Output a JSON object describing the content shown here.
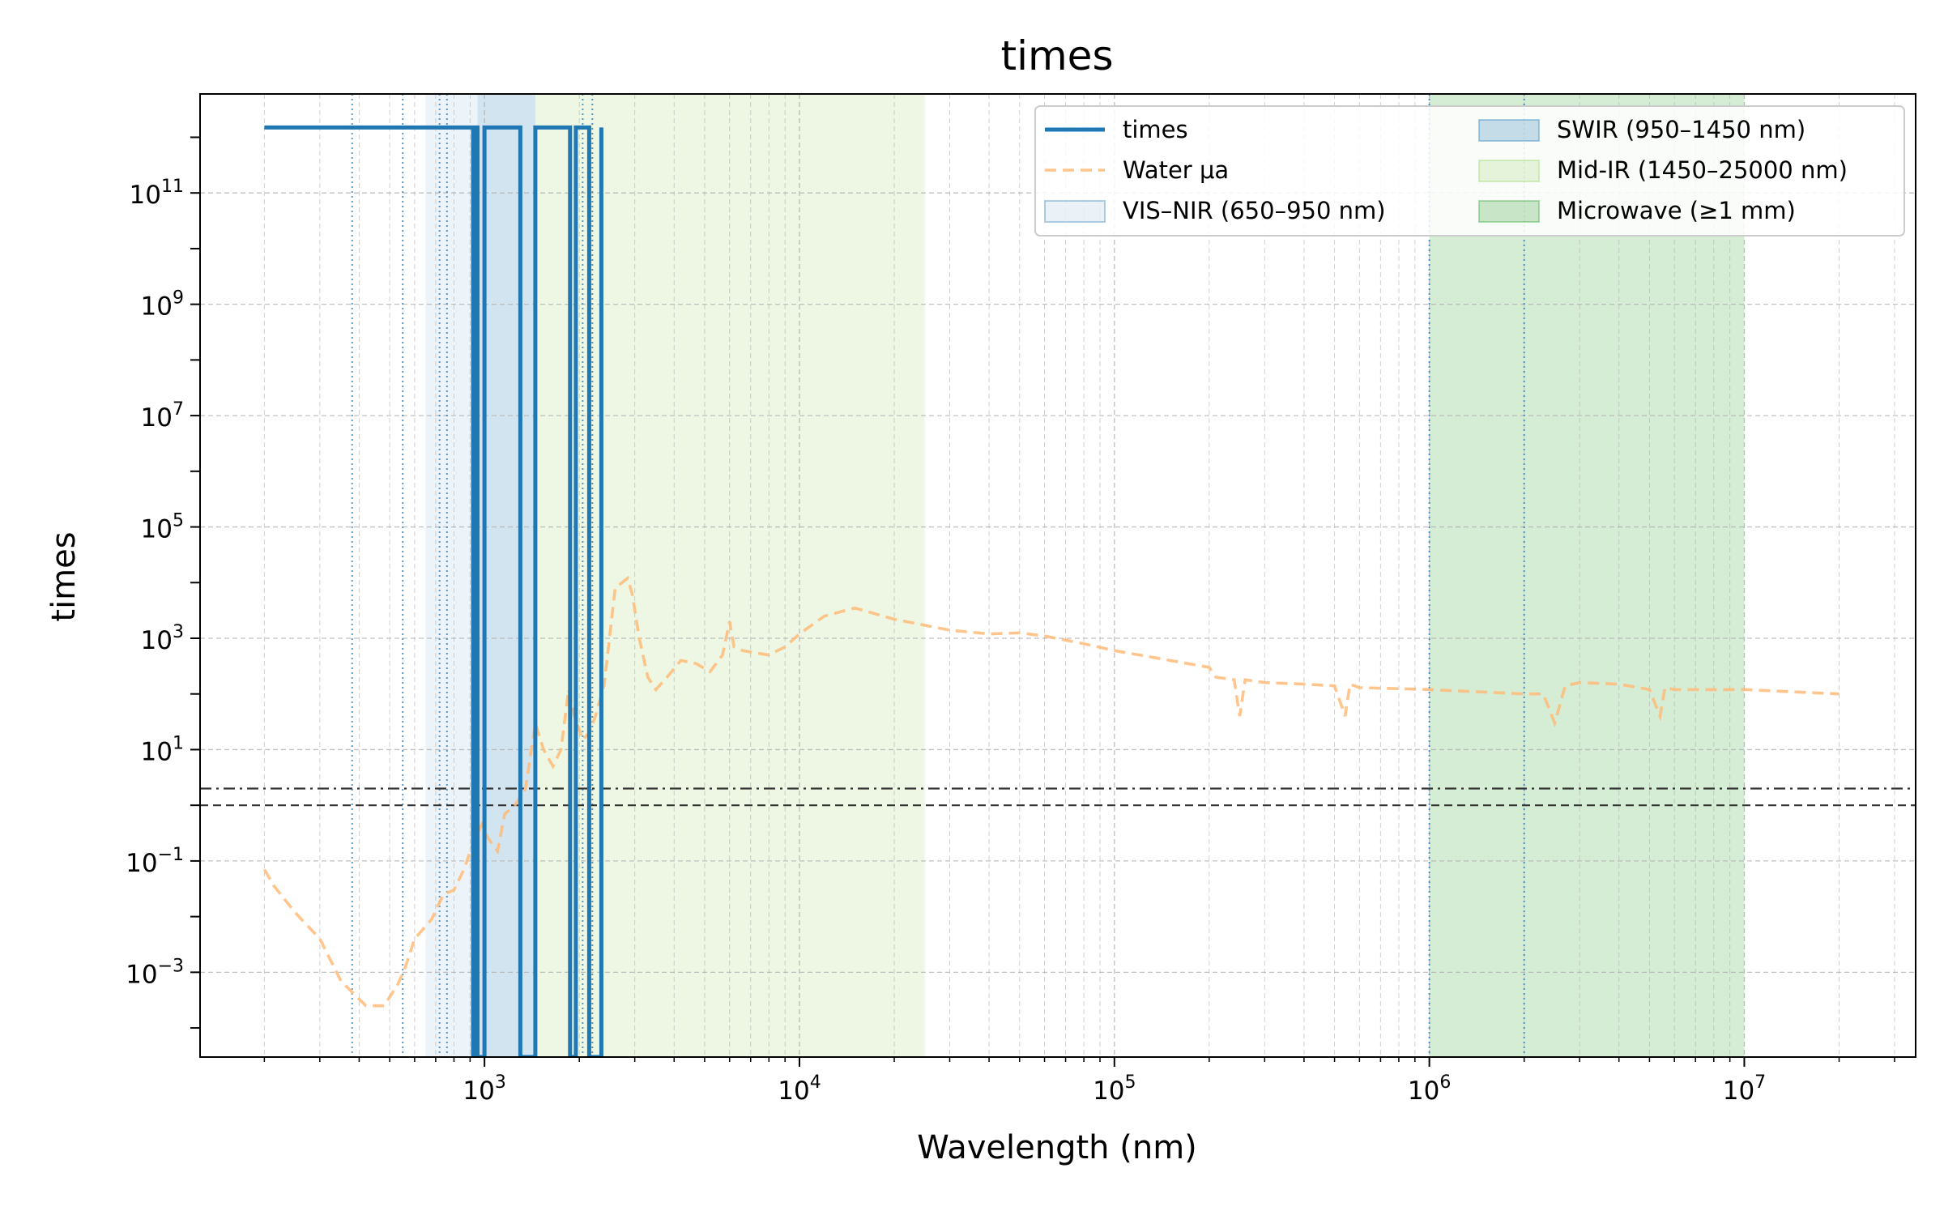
{
  "chart_data": {
    "type": "line",
    "title": "times",
    "xlabel": "Wavelength (nm)",
    "ylabel": "times",
    "xscale": "log",
    "yscale": "log",
    "xlim": [
      125,
      35000000
    ],
    "ylim": [
      3e-05,
      6000000000000
    ],
    "grid": true,
    "legend_position": "top-right",
    "x_tick_labels": [
      {
        "value": 1000,
        "base": "10",
        "exp": "3"
      },
      {
        "value": 10000,
        "base": "10",
        "exp": "4"
      },
      {
        "value": 100000,
        "base": "10",
        "exp": "5"
      },
      {
        "value": 1000000,
        "base": "10",
        "exp": "6"
      },
      {
        "value": 10000000,
        "base": "10",
        "exp": "7"
      }
    ],
    "y_tick_labels": [
      {
        "value": 0.001,
        "base": "10",
        "exp": "−3"
      },
      {
        "value": 0.1,
        "base": "10",
        "exp": "−1"
      },
      {
        "value": 10,
        "base": "10",
        "exp": "1"
      },
      {
        "value": 1000,
        "base": "10",
        "exp": "3"
      },
      {
        "value": 100000,
        "base": "10",
        "exp": "5"
      },
      {
        "value": 10000000,
        "base": "10",
        "exp": "7"
      },
      {
        "value": 1000000000,
        "base": "10",
        "exp": "9"
      },
      {
        "value": 100000000000,
        "base": "10",
        "exp": "11"
      }
    ],
    "bands": [
      {
        "name": "VIS–NIR (650–950 nm)",
        "x0": 650,
        "x1": 950,
        "color": "#1f77b4",
        "opacity": 0.08
      },
      {
        "name": "SWIR (950–1450 nm)",
        "x0": 950,
        "x1": 1450,
        "color": "#1f77b4",
        "opacity": 0.2
      },
      {
        "name": "Mid-IR (1450–25000 nm)",
        "x0": 1450,
        "x1": 25000,
        "color": "#8fd05a",
        "opacity": 0.16
      },
      {
        "name": "Microwave (≥1 mm)",
        "x0": 1000000,
        "x1": 10000000,
        "color": "#2ca02c",
        "opacity": 0.2
      }
    ],
    "reference_lines": [
      {
        "x": 380
      },
      {
        "x": 550
      },
      {
        "x": 720
      },
      {
        "x": 760
      },
      {
        "x": 2050
      },
      {
        "x": 2200
      },
      {
        "x": 1000000
      },
      {
        "x": 2000000
      }
    ],
    "horizontal_lines": [
      {
        "y": 2,
        "style": "dashdot"
      },
      {
        "y": 1,
        "style": "dashed"
      }
    ],
    "series": [
      {
        "name": "times",
        "color": "#1f77b4",
        "style": "solid",
        "x": [
          200,
          920,
          920,
          935,
          935,
          950,
          950,
          1000,
          1000,
          1300,
          1300,
          1450,
          1450,
          1870,
          1870,
          1950,
          1950,
          2150,
          2150,
          2350,
          2350
        ],
        "y": [
          1500000000000.0,
          1500000000000.0,
          3e-05,
          3e-05,
          1500000000000.0,
          1500000000000.0,
          3e-05,
          3e-05,
          1500000000000.0,
          1500000000000.0,
          3e-05,
          3e-05,
          1500000000000.0,
          1500000000000.0,
          3e-05,
          3e-05,
          1500000000000.0,
          1500000000000.0,
          3e-05,
          3e-05,
          1500000000000.0
        ]
      },
      {
        "name": "Water μa",
        "color": "#ffbb78",
        "style": "dashed",
        "x": [
          200,
          215,
          250,
          300,
          350,
          420,
          480,
          530,
          560,
          600,
          680,
          740,
          800,
          860,
          930,
          980,
          1030,
          1100,
          1160,
          1250,
          1350,
          1450,
          1540,
          1650,
          1750,
          1850,
          1930,
          2050,
          2150,
          2250,
          2400,
          2600,
          2850,
          2950,
          3100,
          3300,
          3500,
          3800,
          4200,
          4700,
          5200,
          5700,
          6000,
          6200,
          6600,
          7200,
          8000,
          9000,
          10000,
          12000,
          15000,
          20000,
          30000,
          40000,
          50000,
          60000,
          80000,
          100000,
          150000,
          200000,
          210000,
          240000,
          250000,
          260000,
          300000,
          400000,
          500000,
          540000,
          560000,
          600000,
          1000000,
          2000000,
          2300000,
          2500000,
          2700000,
          3000000,
          4000000,
          5000000,
          5400000,
          5600000,
          6000000,
          10000000,
          20000000
        ],
        "y": [
          0.07,
          0.035,
          0.012,
          0.004,
          0.0007,
          0.00025,
          0.00025,
          0.0006,
          0.0012,
          0.004,
          0.009,
          0.025,
          0.03,
          0.07,
          0.25,
          0.45,
          0.25,
          0.15,
          0.7,
          1,
          2,
          30,
          10,
          5,
          10,
          120,
          40,
          15,
          20,
          40,
          150,
          8000,
          12000,
          6000,
          1000,
          200,
          120,
          200,
          400,
          350,
          250,
          500,
          2000,
          700,
          600,
          550,
          500,
          700,
          1200,
          2500,
          3500,
          2200,
          1400,
          1200,
          1250,
          1100,
          800,
          600,
          400,
          300,
          200,
          180,
          40,
          180,
          160,
          150,
          140,
          40,
          150,
          130,
          120,
          100,
          100,
          30,
          140,
          160,
          150,
          120,
          40,
          130,
          120,
          120,
          100
        ]
      }
    ]
  }
}
